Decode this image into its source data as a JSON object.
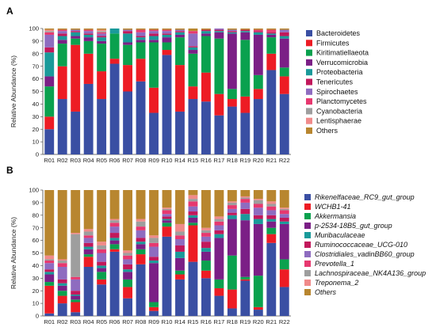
{
  "panel_labels": [
    "A",
    "B"
  ],
  "chart_data": [
    {
      "type": "bar",
      "stacked": true,
      "title": "",
      "xlabel": "",
      "ylabel": "Relative Abundance (%)",
      "ylim": [
        0,
        100
      ],
      "yticks": [
        0,
        10,
        20,
        30,
        40,
        50,
        60,
        70,
        80,
        90,
        100
      ],
      "grid": false,
      "legend_position": "right",
      "legend_italic": false,
      "categories": [
        "R01",
        "R02",
        "R03",
        "R04",
        "R05",
        "R06",
        "R07",
        "R08",
        "R09",
        "R10",
        "R14",
        "R15",
        "R16",
        "R17",
        "R18",
        "R19",
        "R20",
        "R21",
        "R22"
      ],
      "series": [
        {
          "name": "Bacteroidetes",
          "color": "#3a4fa3",
          "values": [
            20,
            44,
            34,
            56,
            44,
            72,
            50,
            58,
            33,
            79,
            34,
            44,
            42,
            31,
            38,
            33,
            44,
            67,
            48
          ]
        },
        {
          "name": "Firmicutes",
          "color": "#ed1c24",
          "values": [
            10,
            26,
            53,
            24,
            22,
            4,
            21,
            18,
            20,
            4,
            37,
            10,
            23,
            17,
            6,
            13,
            8,
            13,
            14
          ]
        },
        {
          "name": "Kiritimatiellaeota",
          "color": "#0aa14e",
          "values": [
            24,
            18,
            5,
            10,
            22,
            20,
            16,
            13,
            36,
            6,
            22,
            26,
            29,
            44,
            8,
            45,
            11,
            13,
            7
          ]
        },
        {
          "name": "Verrucomicrobia",
          "color": "#7b1f86",
          "values": [
            8,
            3,
            2,
            3,
            2,
            0,
            2,
            2,
            2,
            4,
            2,
            3,
            2,
            5,
            44,
            6,
            32,
            2,
            23
          ]
        },
        {
          "name": "Proteobacteria",
          "color": "#1a9a9a",
          "values": [
            19,
            3,
            3,
            2,
            3,
            4,
            7,
            2,
            3,
            2,
            2,
            2,
            2,
            1,
            1,
            1,
            2,
            1,
            2
          ]
        },
        {
          "name": "Tenericutes",
          "color": "#c2185b",
          "values": [
            4,
            2,
            1,
            1,
            1,
            0,
            2,
            1,
            2,
            1,
            1,
            1,
            1,
            1,
            1,
            1,
            1,
            1,
            3
          ]
        },
        {
          "name": "Spirochaetes",
          "color": "#8e6cc0",
          "values": [
            10,
            2,
            1,
            2,
            2,
            0,
            1,
            3,
            2,
            2,
            1,
            10,
            0,
            1,
            1,
            0,
            0,
            0,
            2
          ]
        },
        {
          "name": "Planctomycetes",
          "color": "#e7386f",
          "values": [
            2,
            1,
            0,
            1,
            1,
            0,
            0,
            2,
            1,
            1,
            0,
            2,
            0,
            0,
            0,
            0,
            1,
            2,
            0
          ]
        },
        {
          "name": "Cyanobacteria",
          "color": "#9e9e9e",
          "values": [
            1,
            0,
            0,
            0,
            1,
            0,
            0,
            0,
            0,
            0,
            0,
            0,
            0,
            0,
            0,
            0,
            0,
            0,
            0
          ]
        },
        {
          "name": "Lentisphaerae",
          "color": "#f08a8a",
          "values": [
            1,
            0,
            0,
            0,
            1,
            0,
            0,
            0,
            0,
            0,
            0,
            0,
            0,
            0,
            0,
            0,
            0,
            0,
            0
          ]
        },
        {
          "name": "Others",
          "color": "#b8862f",
          "values": [
            1,
            1,
            1,
            1,
            1,
            0,
            1,
            1,
            1,
            1,
            1,
            2,
            1,
            0,
            1,
            1,
            1,
            1,
            1
          ]
        }
      ]
    },
    {
      "type": "bar",
      "stacked": true,
      "title": "",
      "xlabel": "",
      "ylabel": "Relative Abundance (%)",
      "ylim": [
        0,
        100
      ],
      "yticks": [
        0,
        10,
        20,
        30,
        40,
        50,
        60,
        70,
        80,
        90,
        100
      ],
      "grid": false,
      "legend_position": "right",
      "legend_italic": true,
      "categories": [
        "R01",
        "R02",
        "R03",
        "R04",
        "R05",
        "R06",
        "R07",
        "R08",
        "R09",
        "R10",
        "R14",
        "R15",
        "R16",
        "R17",
        "R18",
        "R19",
        "R20",
        "R21",
        "R22"
      ],
      "series": [
        {
          "name": "Rikenelfaceae_RC9_gut_group",
          "color": "#3a4fa3",
          "values": [
            2,
            10,
            3,
            39,
            25,
            51,
            14,
            41,
            4,
            63,
            29,
            43,
            30,
            16,
            6,
            28,
            5,
            58,
            23
          ]
        },
        {
          "name": "WCHB1-41",
          "color": "#ed1c24",
          "values": [
            22,
            6,
            8,
            8,
            4,
            2,
            9,
            8,
            3,
            8,
            4,
            29,
            6,
            6,
            15,
            1,
            2,
            7,
            14
          ]
        },
        {
          "name": "Akkermansia",
          "color": "#0aa14e",
          "values": [
            3,
            4,
            2,
            2,
            6,
            4,
            6,
            4,
            4,
            3,
            3,
            2,
            8,
            7,
            27,
            2,
            25,
            5,
            8
          ]
        },
        {
          "name": "p-2534-18B5_gut_group",
          "color": "#7b1f86",
          "values": [
            6,
            4,
            3,
            4,
            3,
            3,
            6,
            4,
            31,
            2,
            10,
            4,
            7,
            33,
            29,
            45,
            41,
            5,
            28
          ]
        },
        {
          "name": "Muribaculaceae",
          "color": "#1a9a9a",
          "values": [
            2,
            2,
            1,
            2,
            2,
            2,
            2,
            2,
            2,
            1,
            5,
            2,
            3,
            3,
            3,
            5,
            4,
            2,
            2
          ]
        },
        {
          "name": "Ruminococcaceae_UCG-010",
          "color": "#c2185b",
          "values": [
            2,
            3,
            3,
            3,
            3,
            4,
            4,
            3,
            3,
            2,
            5,
            3,
            5,
            3,
            2,
            4,
            3,
            3,
            3
          ]
        },
        {
          "name": "Clostridiales_vadinBB60_group",
          "color": "#8e6cc0",
          "values": [
            5,
            10,
            9,
            4,
            7,
            5,
            4,
            6,
            8,
            2,
            5,
            4,
            4,
            4,
            3,
            5,
            6,
            4,
            3
          ]
        },
        {
          "name": "Prevotella_1",
          "color": "#e7386f",
          "values": [
            2,
            3,
            2,
            2,
            3,
            3,
            3,
            3,
            3,
            3,
            3,
            4,
            3,
            3,
            3,
            3,
            3,
            3,
            3
          ]
        },
        {
          "name": "Lachnospiraceae_NK4A136_group",
          "color": "#9e9e9e",
          "values": [
            1,
            2,
            34,
            3,
            3,
            2,
            2,
            4,
            4,
            1,
            3,
            2,
            2,
            2,
            2,
            1,
            3,
            2,
            1
          ]
        },
        {
          "name": "Treponema_2",
          "color": "#f08a8a",
          "values": [
            3,
            1,
            1,
            2,
            3,
            1,
            2,
            2,
            2,
            1,
            6,
            3,
            2,
            2,
            1,
            1,
            1,
            2,
            1
          ]
        },
        {
          "name": "Others",
          "color": "#b8862f",
          "values": [
            52,
            55,
            34,
            31,
            41,
            23,
            48,
            23,
            36,
            14,
            27,
            4,
            30,
            21,
            9,
            5,
            7,
            9,
            14
          ]
        }
      ]
    }
  ]
}
